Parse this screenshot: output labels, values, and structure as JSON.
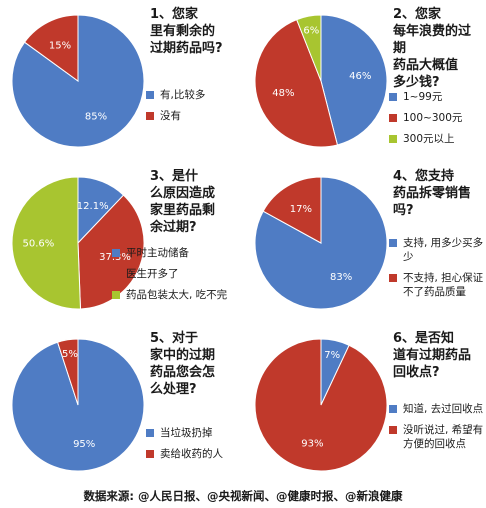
{
  "colors": {
    "blue": "#4f7cc4",
    "red": "#c0392b",
    "green": "#a8c530"
  },
  "chart_data": [
    {
      "type": "pie",
      "title": "1、您家\n里有剩余的\n过期药品吗?",
      "slices": [
        {
          "label": "有,比较多",
          "value": 85,
          "text": "85%",
          "color": "#4f7cc4"
        },
        {
          "label": "没有",
          "value": 15,
          "text": "15%",
          "color": "#c0392b"
        }
      ]
    },
    {
      "type": "pie",
      "title": "2、您家\n每年浪费的过期\n药品大概值\n多少钱?",
      "slices": [
        {
          "label": "1~99元",
          "value": 46,
          "text": "46%",
          "color": "#4f7cc4"
        },
        {
          "label": "100~300元",
          "value": 48,
          "text": "48%",
          "color": "#c0392b"
        },
        {
          "label": "300元以上",
          "value": 6,
          "text": "6%",
          "color": "#a8c530"
        }
      ]
    },
    {
      "type": "pie",
      "title": "3、是什\n么原因造成\n家里药品剩\n余过期?",
      "slices": [
        {
          "label": "平时主动储备",
          "value": 12.1,
          "text": "12.1%",
          "color": "#4f7cc4"
        },
        {
          "label": "医生开多了",
          "value": 37.3,
          "text": "37.3%",
          "color": "#c0392b"
        },
        {
          "label": "药品包装太大, 吃不完",
          "value": 50.6,
          "text": "50.6%",
          "color": "#a8c530"
        }
      ]
    },
    {
      "type": "pie",
      "title": "4、您支持\n药品拆零销售\n吗?",
      "slices": [
        {
          "label": "支持, 用多少买多少",
          "value": 83,
          "text": "83%",
          "color": "#4f7cc4"
        },
        {
          "label": "不支持, 担心保证不了药品质量",
          "value": 17,
          "text": "17%",
          "color": "#c0392b"
        }
      ]
    },
    {
      "type": "pie",
      "title": "5、对于\n家中的过期\n药品您会怎\n么处理?",
      "slices": [
        {
          "label": "当垃圾扔掉",
          "value": 95,
          "text": "95%",
          "color": "#4f7cc4"
        },
        {
          "label": "卖给收药的人",
          "value": 5,
          "text": "5%",
          "color": "#c0392b"
        }
      ]
    },
    {
      "type": "pie",
      "title": "6、是否知\n道有过期药品\n回收点?",
      "slices": [
        {
          "label": "知道, 去过回收点",
          "value": 7,
          "text": "7%",
          "color": "#4f7cc4"
        },
        {
          "label": "没听说过, 希望有方便的回收点",
          "value": 93,
          "text": "93%",
          "color": "#c0392b"
        }
      ]
    }
  ],
  "footer": "数据来源: @人民日报、@央视新闻、@健康时报、@新浪健康"
}
